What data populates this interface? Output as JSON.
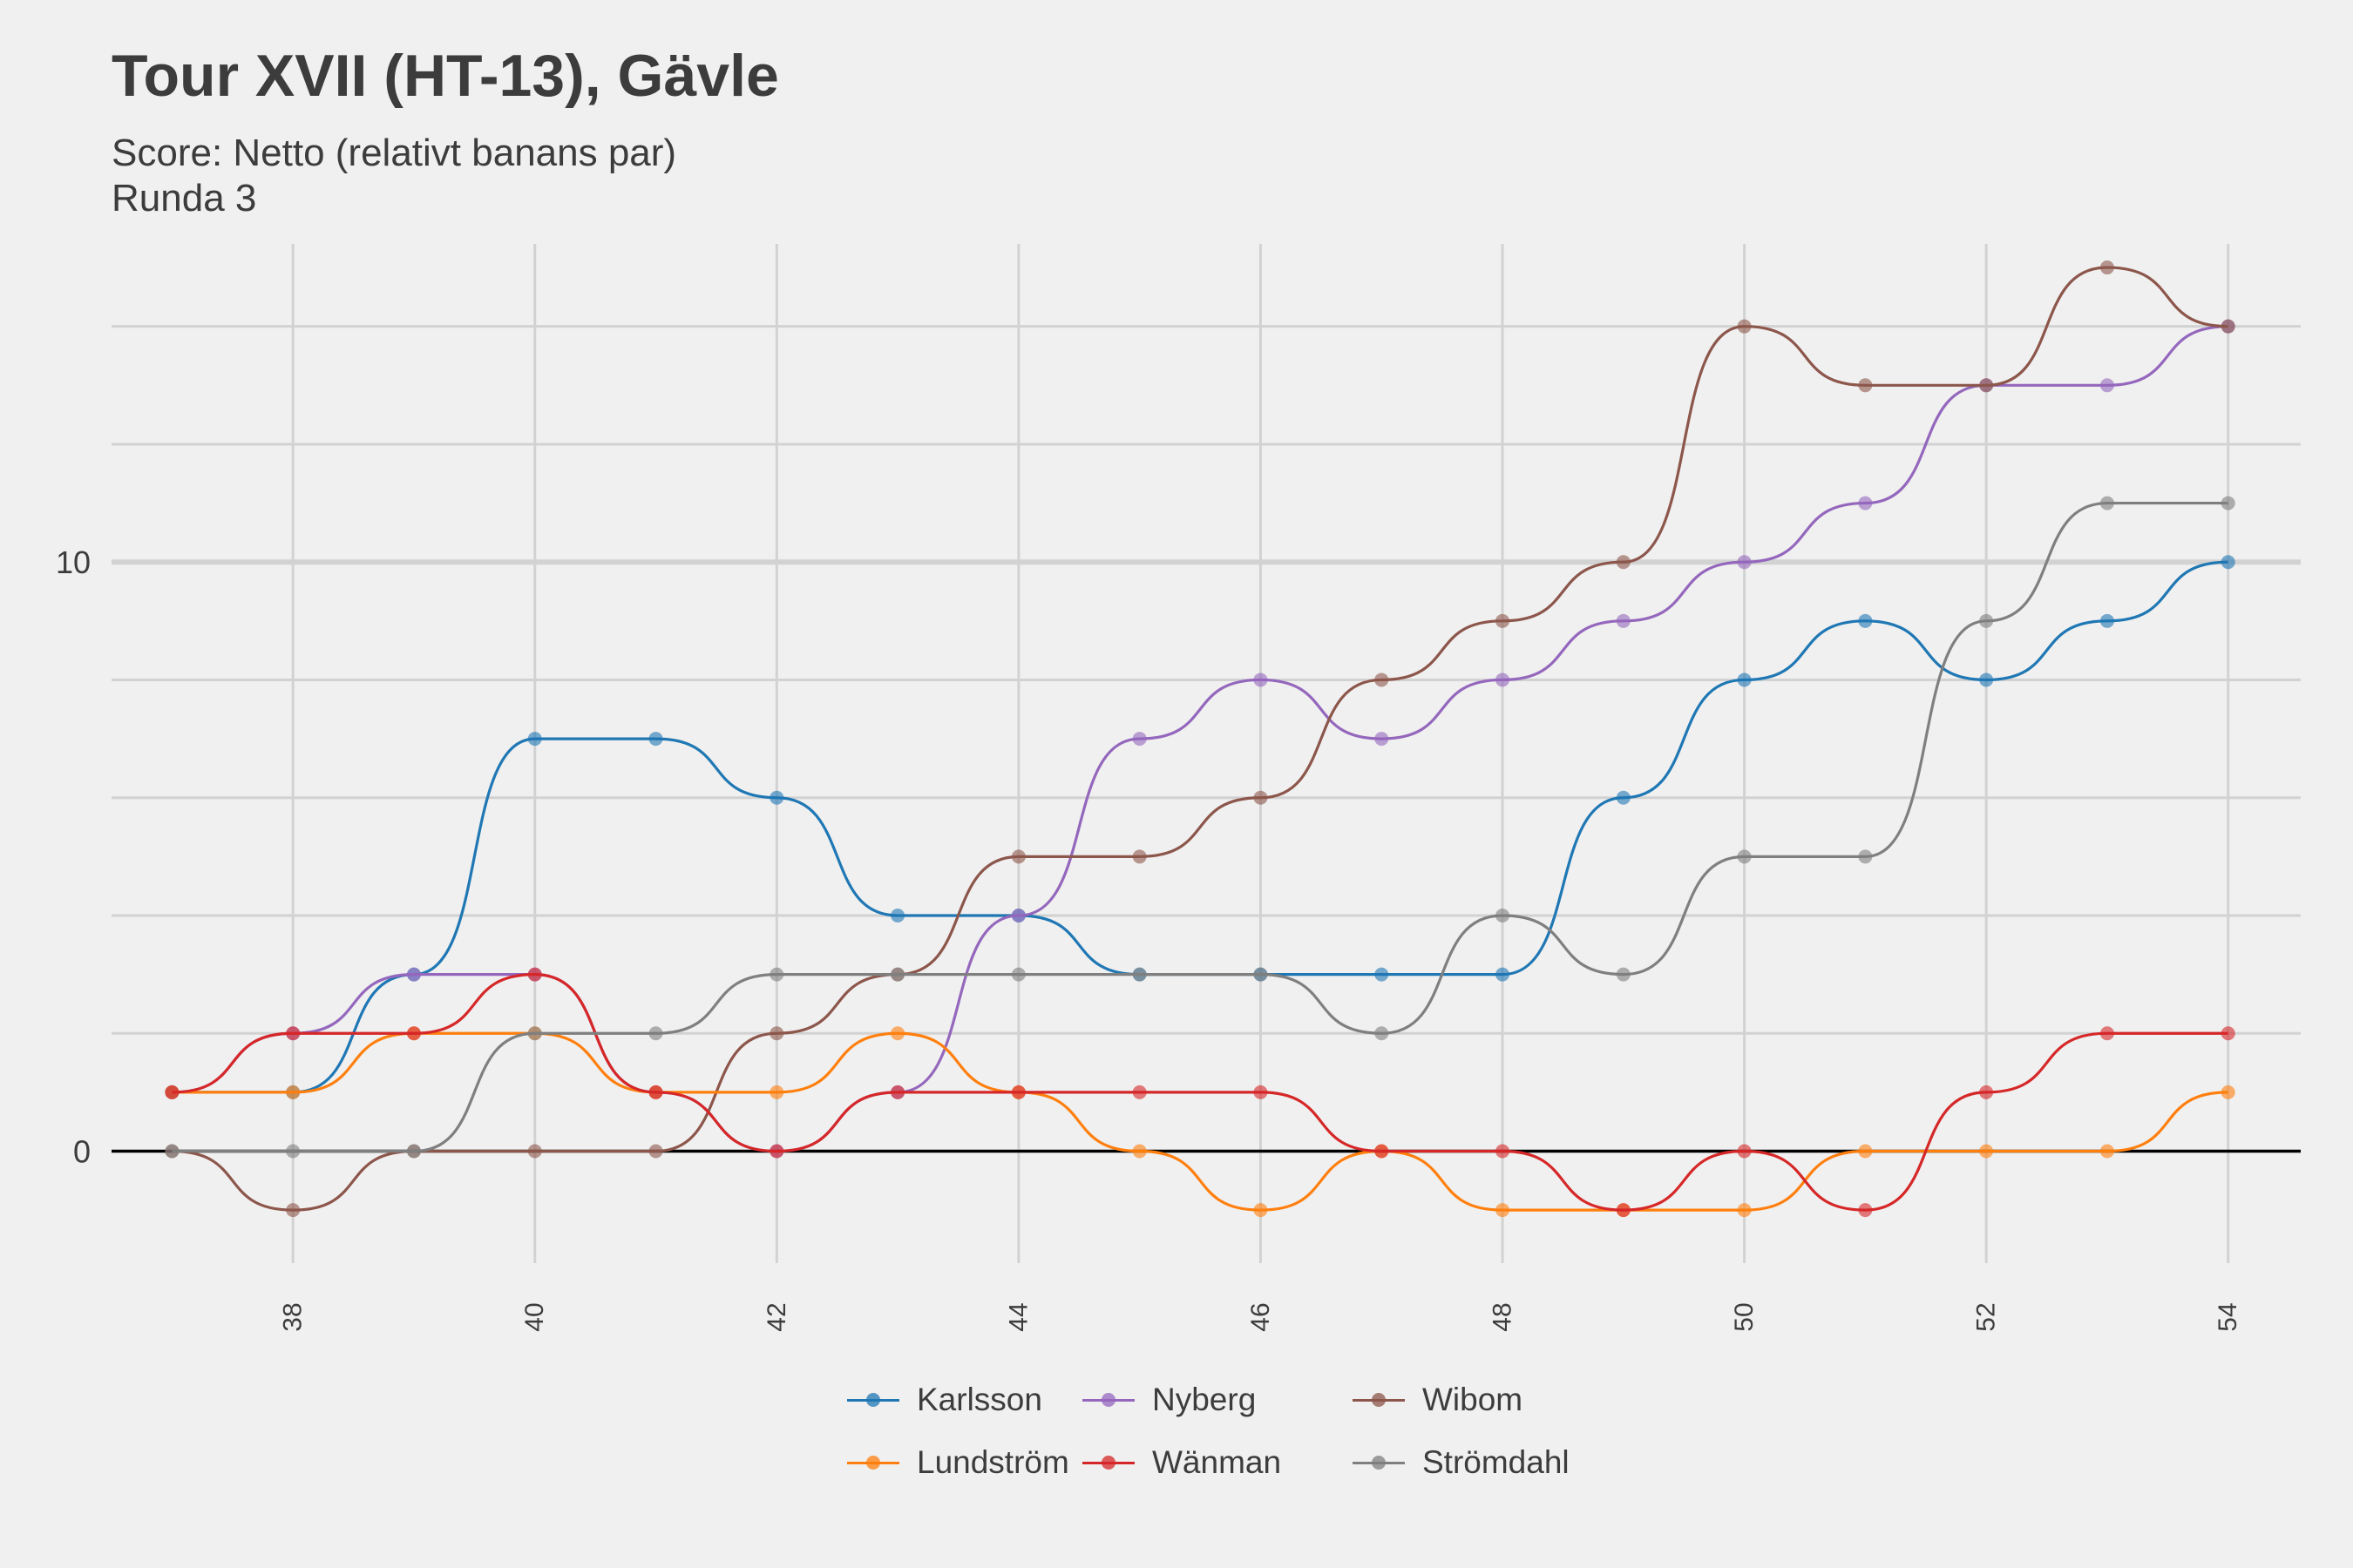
{
  "title": "Tour XVII (HT-13), Gävle",
  "subtitle_lines": [
    "Score: Netto (relativt banans par)",
    "Runda 3"
  ],
  "chart_data": {
    "type": "line",
    "title": "Tour XVII (HT-13), Gävle",
    "subtitle": "Score: Netto (relativt banans par)\nRunda 3",
    "xlabel": "",
    "ylabel": "",
    "xlim": [
      36.5,
      54.6
    ],
    "ylim": [
      -1.9,
      15.4
    ],
    "x_ticks": [
      38,
      40,
      42,
      44,
      46,
      48,
      50,
      52,
      54
    ],
    "x_tick_labels": [
      "38",
      "40",
      "42",
      "44",
      "46",
      "48",
      "50",
      "52",
      "54"
    ],
    "y_ticks": [
      0,
      10
    ],
    "y_tick_labels": [
      "0",
      "10"
    ],
    "y_minor_grid": [
      2,
      4,
      6,
      8,
      12,
      14
    ],
    "grid": true,
    "zero_line": true,
    "legend_position": "bottom",
    "x": [
      37,
      38,
      39,
      40,
      41,
      42,
      43,
      44,
      45,
      46,
      47,
      48,
      49,
      50,
      51,
      52,
      53,
      54
    ],
    "series": [
      {
        "name": "Karlsson",
        "color": "#1f77b4",
        "values": [
          1,
          1,
          3,
          7,
          7,
          6,
          4,
          4,
          3,
          3,
          3,
          3,
          6,
          8,
          9,
          8,
          9,
          10
        ]
      },
      {
        "name": "Nyberg",
        "color": "#9467bd",
        "values": [
          1,
          2,
          3,
          3,
          1,
          0,
          1,
          4,
          7,
          8,
          7,
          8,
          9,
          10,
          11,
          13,
          13,
          14
        ]
      },
      {
        "name": "Wibom",
        "color": "#8c564b",
        "values": [
          0,
          -1,
          0,
          0,
          0,
          2,
          3,
          5,
          5,
          6,
          8,
          9,
          10,
          14,
          13,
          13,
          15,
          14
        ]
      },
      {
        "name": "Lundström",
        "color": "#ff7f0e",
        "values": [
          1,
          1,
          2,
          2,
          1,
          1,
          2,
          1,
          0,
          -1,
          0,
          -1,
          -1,
          -1,
          0,
          0,
          0,
          1
        ]
      },
      {
        "name": "Wänman",
        "color": "#d62728",
        "values": [
          1,
          2,
          2,
          3,
          1,
          0,
          1,
          1,
          1,
          1,
          0,
          0,
          -1,
          0,
          -1,
          1,
          2,
          2
        ]
      },
      {
        "name": "Strömdahl",
        "color": "#7f7f7f",
        "values": [
          0,
          0,
          0,
          2,
          2,
          3,
          3,
          3,
          3,
          3,
          2,
          4,
          3,
          5,
          5,
          9,
          11,
          11
        ]
      }
    ]
  }
}
